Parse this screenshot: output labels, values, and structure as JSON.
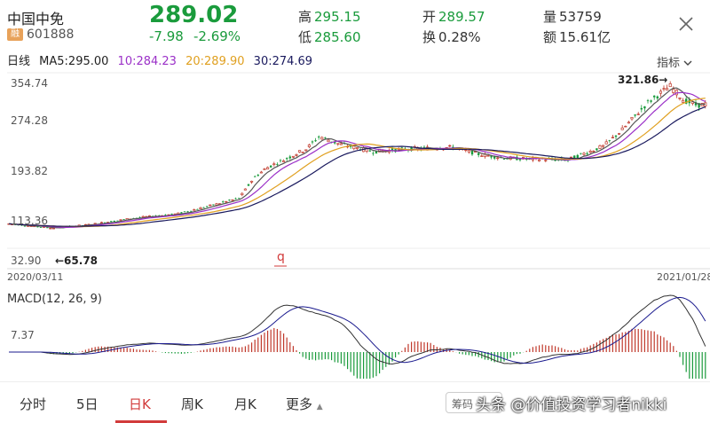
{
  "header": {
    "name": "中国中免",
    "badge": "融",
    "code": "601888",
    "price": "289.02",
    "change": "-7.98",
    "change_pct": "-2.69%",
    "high_label": "高",
    "high": "295.15",
    "low_label": "低",
    "low": "285.60",
    "open_label": "开",
    "open": "289.57",
    "turnover_label": "换",
    "turnover": "0.28%",
    "volume_label": "量",
    "volume": "53759",
    "amount_label": "额",
    "amount": "15.61亿"
  },
  "ma": {
    "period": "日线",
    "ma5": "MA5:295.00",
    "ma10": "10:284.23",
    "ma20": "20:289.90",
    "ma30": "30:274.69",
    "indicator_button": "指标"
  },
  "chart_data": {
    "type": "candlestick",
    "y_ticks": [
      "354.74",
      "274.28",
      "193.82",
      "113.36",
      "32.90"
    ],
    "ylim": [
      32.9,
      354.74
    ],
    "x_start": "2020/03/11",
    "x_end": "2021/01/28",
    "max_annotation": "321.86→",
    "min_annotation": "←65.78",
    "marker": "q",
    "colors": {
      "up": "#c0392b",
      "down": "#1a9b3c",
      "ma5": "#555555",
      "ma10": "#9b30c8",
      "ma20": "#e0a020",
      "ma30": "#1a1a5e"
    }
  },
  "macd": {
    "label": "MACD(12, 26, 9)",
    "tick": "7.37"
  },
  "tabs": [
    "分时",
    "5日",
    "日K",
    "周K",
    "月K",
    "更多"
  ],
  "active_tab": "日K",
  "code_button": "筹码",
  "watermark": "头条 @价值投资学习者nikki"
}
